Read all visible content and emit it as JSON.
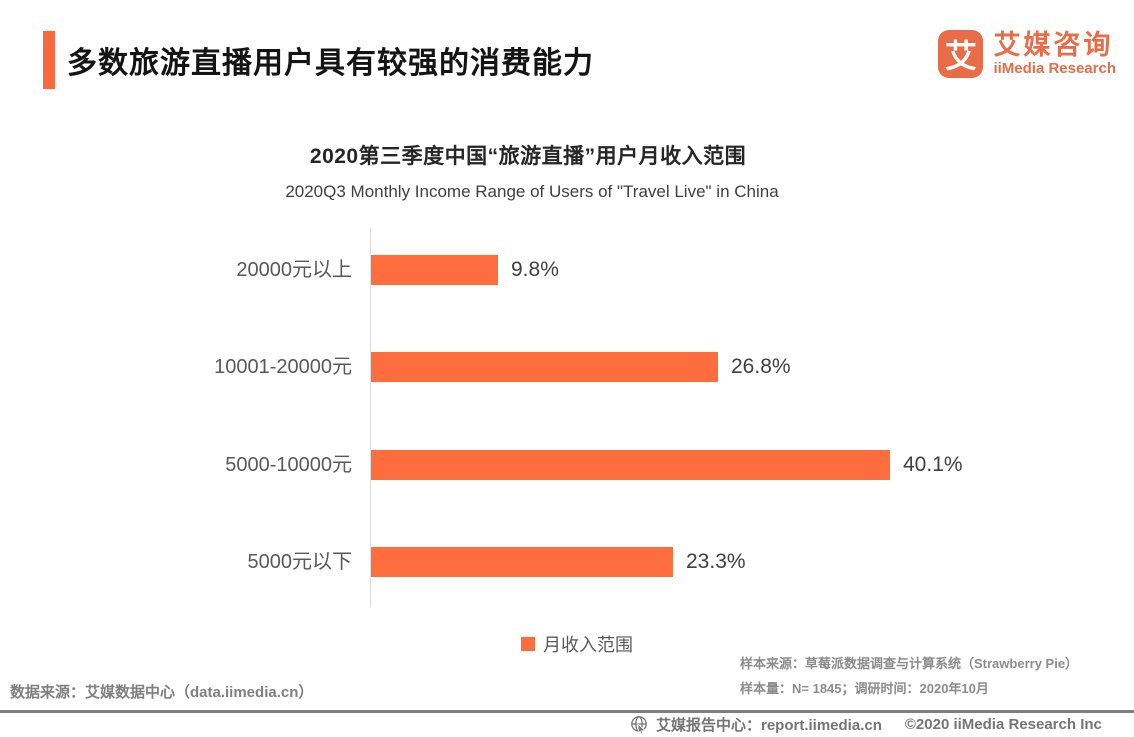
{
  "header": {
    "title": "多数旅游直播用户具有较强的消费能力",
    "logo": {
      "glyph": "艾",
      "name_cn": "艾媒咨询",
      "name_en": "iiMedia Research"
    }
  },
  "chart": {
    "legend_label": "月收入范围"
  },
  "chart_data": {
    "type": "bar",
    "orientation": "horizontal",
    "title": "2020第三季度中国“旅游直播”用户月收入范围",
    "subtitle": "2020Q3 Monthly Income Range of Users of \"Travel Live\" in China",
    "categories": [
      "20000元以上",
      "10001-20000元",
      "5000-10000元",
      "5000元以下"
    ],
    "values": [
      9.8,
      26.8,
      40.1,
      23.3
    ],
    "value_suffix": "%",
    "series_name": "月收入范围",
    "xlim": [
      0,
      45
    ],
    "grid": false,
    "legend_position": "bottom",
    "bar_color": "#FD6D3E"
  },
  "notes": {
    "data_source": "数据来源：艾媒数据中心（data.iimedia.cn）",
    "sample_source": "样本来源：草莓派数据调查与计算系统（Strawberry Pie）",
    "sample_size": "样本量：N= 1845；调研时间：2020年10月"
  },
  "footer": {
    "report_center": "艾媒报告中心：report.iimedia.cn",
    "copyright": "©2020  iiMedia Research  Inc"
  },
  "colors": {
    "accent": "#F9693F",
    "bar": "#FD6D3E",
    "logo": "#E96C49"
  }
}
